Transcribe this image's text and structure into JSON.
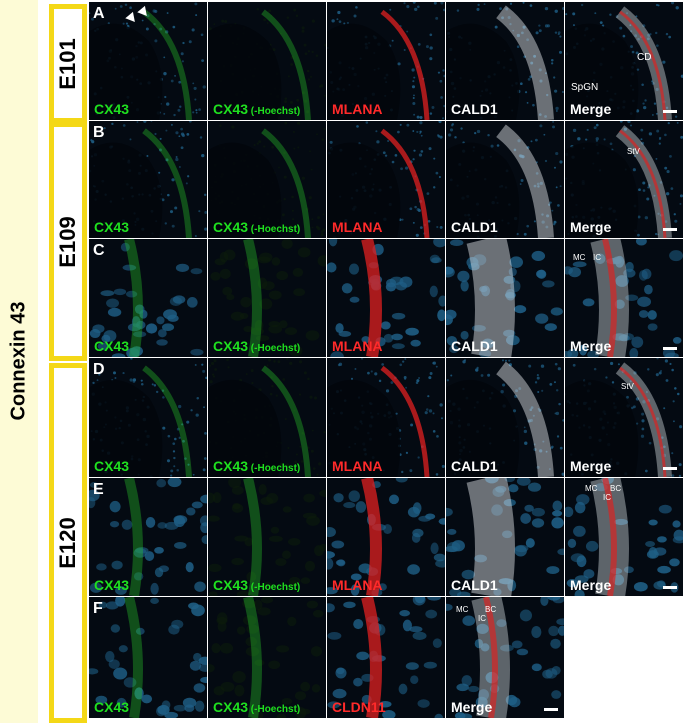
{
  "side_label": "Connexin 43",
  "ages": [
    "E101",
    "E109",
    "E120"
  ],
  "rows": [
    {
      "letter": "A",
      "panels": [
        {
          "label": "CX43",
          "suffix": "",
          "color": "green"
        },
        {
          "label": "CX43",
          "suffix": "(-Hoechst)",
          "color": "green"
        },
        {
          "label": "MLANA",
          "suffix": "",
          "color": "red"
        },
        {
          "label": "CALD1",
          "suffix": "",
          "color": "white"
        },
        {
          "label": "Merge",
          "suffix": "",
          "color": "white",
          "annotations": [
            "CD",
            "SpGN"
          ]
        }
      ]
    },
    {
      "letter": "B",
      "panels": [
        {
          "label": "CX43",
          "suffix": "",
          "color": "green"
        },
        {
          "label": "CX43",
          "suffix": "(-Hoechst)",
          "color": "green"
        },
        {
          "label": "MLANA",
          "suffix": "",
          "color": "red"
        },
        {
          "label": "CALD1",
          "suffix": "",
          "color": "white"
        },
        {
          "label": "Merge",
          "suffix": "",
          "color": "white",
          "annotations": [
            "StV"
          ]
        }
      ]
    },
    {
      "letter": "C",
      "panels": [
        {
          "label": "CX43",
          "suffix": "",
          "color": "green"
        },
        {
          "label": "CX43",
          "suffix": "(-Hoechst)",
          "color": "green"
        },
        {
          "label": "MLANA",
          "suffix": "",
          "color": "red"
        },
        {
          "label": "CALD1",
          "suffix": "",
          "color": "white"
        },
        {
          "label": "Merge",
          "suffix": "",
          "color": "white",
          "annotations": [
            "MC",
            "IC"
          ]
        }
      ]
    },
    {
      "letter": "D",
      "panels": [
        {
          "label": "CX43",
          "suffix": "",
          "color": "green"
        },
        {
          "label": "CX43",
          "suffix": "(-Hoechst)",
          "color": "green"
        },
        {
          "label": "MLANA",
          "suffix": "",
          "color": "red"
        },
        {
          "label": "CALD1",
          "suffix": "",
          "color": "white"
        },
        {
          "label": "Merge",
          "suffix": "",
          "color": "white",
          "annotations": [
            "StV"
          ]
        }
      ]
    },
    {
      "letter": "E",
      "panels": [
        {
          "label": "CX43",
          "suffix": "",
          "color": "green"
        },
        {
          "label": "CX43",
          "suffix": "(-Hoechst)",
          "color": "green"
        },
        {
          "label": "MLANA",
          "suffix": "",
          "color": "red"
        },
        {
          "label": "CALD1",
          "suffix": "",
          "color": "white"
        },
        {
          "label": "Merge",
          "suffix": "",
          "color": "white",
          "annotations": [
            "MC",
            "BC",
            "IC"
          ]
        }
      ]
    },
    {
      "letter": "F",
      "panels": [
        {
          "label": "CX43",
          "suffix": "",
          "color": "green"
        },
        {
          "label": "CX43",
          "suffix": "(-Hoechst)",
          "color": "green"
        },
        {
          "label": "CLDN11",
          "suffix": "",
          "color": "red"
        },
        {
          "label": "Merge",
          "suffix": "",
          "color": "white",
          "annotations": [
            "MC",
            "BC",
            "IC"
          ]
        }
      ]
    }
  ]
}
